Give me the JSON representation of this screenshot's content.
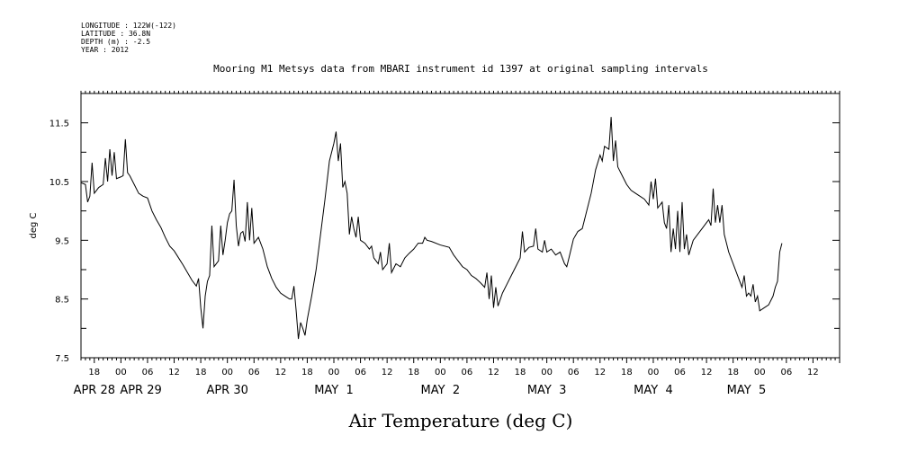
{
  "meta": {
    "longitude": "LONGITUDE : 122W(-122)",
    "latitude": "LATITUDE : 36.8N",
    "depth": "DEPTH (m) : -2.5",
    "year": "YEAR : 2012"
  },
  "chart_data": {
    "type": "line",
    "title": "Mooring M1 Metsys data from MBARI instrument id 1397 at original sampling intervals",
    "xlabel": "Air Temperature (deg C)",
    "ylabel": "deg C",
    "ylim": [
      7.5,
      12.0
    ],
    "xlim_hours": [
      -9,
      162
    ],
    "yticks": [
      "7.5",
      "8.5",
      "9.5",
      "10.5",
      "11.5"
    ],
    "ytick_values": [
      7.5,
      8.5,
      9.5,
      10.5,
      11.5
    ],
    "xticks": [
      {
        "label": "18",
        "h": -6
      },
      {
        "label": "00",
        "h": 0
      },
      {
        "label": "06",
        "h": 6
      },
      {
        "label": "12",
        "h": 12
      },
      {
        "label": "18",
        "h": 18
      },
      {
        "label": "00",
        "h": 24
      },
      {
        "label": "06",
        "h": 30
      },
      {
        "label": "12",
        "h": 36
      },
      {
        "label": "18",
        "h": 42
      },
      {
        "label": "00",
        "h": 48
      },
      {
        "label": "06",
        "h": 54
      },
      {
        "label": "12",
        "h": 60
      },
      {
        "label": "18",
        "h": 66
      },
      {
        "label": "00",
        "h": 72
      },
      {
        "label": "06",
        "h": 78
      },
      {
        "label": "12",
        "h": 84
      },
      {
        "label": "18",
        "h": 90
      },
      {
        "label": "00",
        "h": 96
      },
      {
        "label": "06",
        "h": 102
      },
      {
        "label": "12",
        "h": 108
      },
      {
        "label": "18",
        "h": 114
      },
      {
        "label": "00",
        "h": 120
      },
      {
        "label": "06",
        "h": 126
      },
      {
        "label": "12",
        "h": 132
      },
      {
        "label": "18",
        "h": 138
      },
      {
        "label": "00",
        "h": 144
      },
      {
        "label": "06",
        "h": 150
      },
      {
        "label": "12",
        "h": 156
      }
    ],
    "date_labels": [
      {
        "label": "APR 28",
        "h": -6
      },
      {
        "label": "APR 29",
        "h": 4.5
      },
      {
        "label": "APR 30",
        "h": 24
      },
      {
        "label": "MAY  1",
        "h": 48
      },
      {
        "label": "MAY  2",
        "h": 72
      },
      {
        "label": "MAY  3",
        "h": 96
      },
      {
        "label": "MAY  4",
        "h": 120
      },
      {
        "label": "MAY  5",
        "h": 141
      }
    ],
    "series": [
      {
        "values": [
          [
            -9,
            10.48
          ],
          [
            -8,
            10.45
          ],
          [
            -7.5,
            10.15
          ],
          [
            -7,
            10.25
          ],
          [
            -6.5,
            10.82
          ],
          [
            -6,
            10.3
          ],
          [
            -5,
            10.4
          ],
          [
            -4,
            10.45
          ],
          [
            -3.5,
            10.9
          ],
          [
            -3,
            10.5
          ],
          [
            -2.5,
            11.05
          ],
          [
            -2,
            10.6
          ],
          [
            -1.5,
            11.0
          ],
          [
            -1,
            10.55
          ],
          [
            0,
            10.58
          ],
          [
            0.5,
            10.6
          ],
          [
            1,
            11.22
          ],
          [
            1.5,
            10.65
          ],
          [
            2,
            10.6
          ],
          [
            3,
            10.45
          ],
          [
            4,
            10.3
          ],
          [
            5,
            10.25
          ],
          [
            6,
            10.22
          ],
          [
            7,
            10.0
          ],
          [
            8,
            9.85
          ],
          [
            9,
            9.72
          ],
          [
            10,
            9.55
          ],
          [
            11,
            9.4
          ],
          [
            12,
            9.32
          ],
          [
            13,
            9.2
          ],
          [
            14,
            9.08
          ],
          [
            15,
            8.95
          ],
          [
            16,
            8.82
          ],
          [
            17,
            8.72
          ],
          [
            17.5,
            8.85
          ],
          [
            18,
            8.35
          ],
          [
            18.5,
            8.0
          ],
          [
            19,
            8.55
          ],
          [
            19.5,
            8.8
          ],
          [
            20,
            8.9
          ],
          [
            20.5,
            9.75
          ],
          [
            21,
            9.05
          ],
          [
            21.5,
            9.1
          ],
          [
            22,
            9.15
          ],
          [
            22.5,
            9.75
          ],
          [
            23,
            9.25
          ],
          [
            23.5,
            9.5
          ],
          [
            24,
            9.8
          ],
          [
            24.5,
            9.95
          ],
          [
            25,
            10.0
          ],
          [
            25.5,
            10.53
          ],
          [
            26,
            9.75
          ],
          [
            26.5,
            9.4
          ],
          [
            27,
            9.62
          ],
          [
            27.5,
            9.65
          ],
          [
            28,
            9.48
          ],
          [
            28.5,
            10.15
          ],
          [
            29,
            9.5
          ],
          [
            29.5,
            10.05
          ],
          [
            30,
            9.45
          ],
          [
            31,
            9.55
          ],
          [
            32,
            9.35
          ],
          [
            33,
            9.05
          ],
          [
            34,
            8.85
          ],
          [
            35,
            8.7
          ],
          [
            36,
            8.6
          ],
          [
            37,
            8.55
          ],
          [
            38,
            8.5
          ],
          [
            38.5,
            8.5
          ],
          [
            39,
            8.72
          ],
          [
            39.5,
            8.3
          ],
          [
            40,
            7.82
          ],
          [
            40.5,
            8.1
          ],
          [
            41,
            8.0
          ],
          [
            41.5,
            7.88
          ],
          [
            42,
            8.15
          ],
          [
            43,
            8.55
          ],
          [
            44,
            9.0
          ],
          [
            45,
            9.6
          ],
          [
            46,
            10.2
          ],
          [
            47,
            10.85
          ],
          [
            48,
            11.15
          ],
          [
            48.5,
            11.35
          ],
          [
            49,
            10.85
          ],
          [
            49.5,
            11.15
          ],
          [
            50,
            10.4
          ],
          [
            50.5,
            10.5
          ],
          [
            51,
            10.3
          ],
          [
            51.5,
            9.6
          ],
          [
            52,
            9.9
          ],
          [
            52.5,
            9.7
          ],
          [
            53,
            9.55
          ],
          [
            53.5,
            9.9
          ],
          [
            54,
            9.5
          ],
          [
            55,
            9.45
          ],
          [
            56,
            9.35
          ],
          [
            56.5,
            9.4
          ],
          [
            57,
            9.2
          ],
          [
            58,
            9.1
          ],
          [
            58.5,
            9.3
          ],
          [
            59,
            9.0
          ],
          [
            60,
            9.1
          ],
          [
            60.5,
            9.45
          ],
          [
            61,
            8.95
          ],
          [
            62,
            9.1
          ],
          [
            63,
            9.05
          ],
          [
            64,
            9.2
          ],
          [
            65,
            9.28
          ],
          [
            66,
            9.35
          ],
          [
            67,
            9.45
          ],
          [
            68,
            9.45
          ],
          [
            68.5,
            9.55
          ],
          [
            69,
            9.5
          ],
          [
            70,
            9.48
          ],
          [
            72,
            9.42
          ],
          [
            74,
            9.38
          ],
          [
            75,
            9.25
          ],
          [
            76,
            9.15
          ],
          [
            77,
            9.05
          ],
          [
            78,
            9.0
          ],
          [
            79,
            8.9
          ],
          [
            80,
            8.85
          ],
          [
            81,
            8.78
          ],
          [
            82,
            8.7
          ],
          [
            82.5,
            8.95
          ],
          [
            83,
            8.5
          ],
          [
            83.5,
            8.9
          ],
          [
            84,
            8.35
          ],
          [
            84.5,
            8.7
          ],
          [
            85,
            8.38
          ],
          [
            86,
            8.6
          ],
          [
            87,
            8.75
          ],
          [
            88,
            8.9
          ],
          [
            89,
            9.05
          ],
          [
            90,
            9.2
          ],
          [
            90.5,
            9.65
          ],
          [
            91,
            9.3
          ],
          [
            92,
            9.38
          ],
          [
            93,
            9.4
          ],
          [
            93.5,
            9.7
          ],
          [
            94,
            9.35
          ],
          [
            95,
            9.3
          ],
          [
            95.5,
            9.5
          ],
          [
            96,
            9.3
          ],
          [
            97,
            9.35
          ],
          [
            98,
            9.25
          ],
          [
            99,
            9.3
          ],
          [
            100,
            9.1
          ],
          [
            100.5,
            9.05
          ],
          [
            101,
            9.2
          ],
          [
            102,
            9.52
          ],
          [
            103,
            9.65
          ],
          [
            104,
            9.7
          ],
          [
            105,
            10.0
          ],
          [
            106,
            10.3
          ],
          [
            107,
            10.7
          ],
          [
            108,
            10.95
          ],
          [
            108.5,
            10.85
          ],
          [
            109,
            11.1
          ],
          [
            110,
            11.05
          ],
          [
            110.5,
            11.6
          ],
          [
            111,
            10.85
          ],
          [
            111.5,
            11.2
          ],
          [
            112,
            10.75
          ],
          [
            113,
            10.6
          ],
          [
            114,
            10.45
          ],
          [
            115,
            10.35
          ],
          [
            116,
            10.3
          ],
          [
            117,
            10.25
          ],
          [
            118,
            10.2
          ],
          [
            119,
            10.1
          ],
          [
            119.5,
            10.5
          ],
          [
            120,
            10.2
          ],
          [
            120.5,
            10.55
          ],
          [
            121,
            10.05
          ],
          [
            122,
            10.15
          ],
          [
            122.5,
            9.8
          ],
          [
            123,
            9.7
          ],
          [
            123.5,
            10.1
          ],
          [
            124,
            9.3
          ],
          [
            124.5,
            9.7
          ],
          [
            125,
            9.35
          ],
          [
            125.5,
            10.0
          ],
          [
            126,
            9.3
          ],
          [
            126.5,
            10.15
          ],
          [
            127,
            9.35
          ],
          [
            127.5,
            9.6
          ],
          [
            128,
            9.25
          ],
          [
            129,
            9.5
          ],
          [
            130,
            9.6
          ],
          [
            131,
            9.7
          ],
          [
            132,
            9.8
          ],
          [
            132.5,
            9.85
          ],
          [
            133,
            9.75
          ],
          [
            133.5,
            10.38
          ],
          [
            134,
            9.8
          ],
          [
            134.5,
            10.1
          ],
          [
            135,
            9.8
          ],
          [
            135.5,
            10.1
          ],
          [
            136,
            9.6
          ],
          [
            137,
            9.3
          ],
          [
            138,
            9.1
          ],
          [
            139,
            8.9
          ],
          [
            140,
            8.7
          ],
          [
            140.5,
            8.9
          ],
          [
            141,
            8.55
          ],
          [
            141.5,
            8.6
          ],
          [
            142,
            8.55
          ],
          [
            142.5,
            8.75
          ],
          [
            143,
            8.45
          ],
          [
            143.5,
            8.55
          ],
          [
            144,
            8.3
          ],
          [
            145,
            8.35
          ],
          [
            146,
            8.4
          ],
          [
            147,
            8.55
          ],
          [
            147.5,
            8.7
          ],
          [
            148,
            8.8
          ],
          [
            148.5,
            9.3
          ],
          [
            149,
            9.45
          ]
        ]
      }
    ]
  }
}
